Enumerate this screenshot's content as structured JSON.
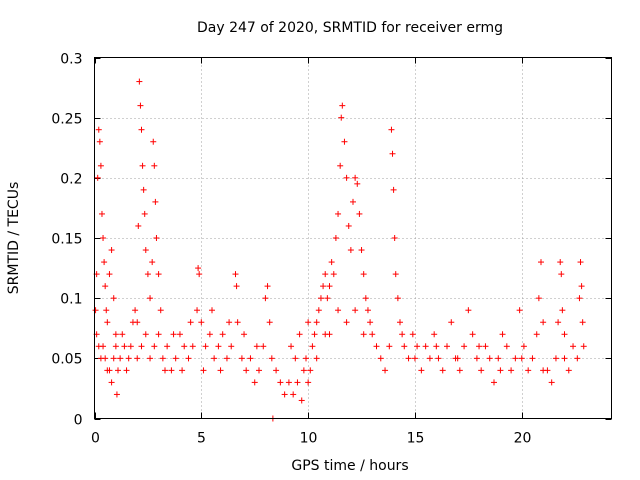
{
  "chart_data": {
    "type": "scatter",
    "title": "Day 247 of 2020, SRMTID for receiver ermg",
    "xlabel": "GPS time / hours",
    "ylabel": "SRMTID / TECUs",
    "xlim": [
      0,
      24.2
    ],
    "ylim": [
      0,
      0.3
    ],
    "xticks": [
      0,
      5,
      10,
      15,
      20
    ],
    "xtick_labels": [
      "0",
      "5",
      "10",
      "15",
      "20"
    ],
    "yticks": [
      0,
      0.05,
      0.1,
      0.15,
      0.2,
      0.25,
      0.3
    ],
    "ytick_labels": [
      "0",
      "0.05",
      "0.1",
      "0.15",
      "0.2",
      "0.25",
      "0.3"
    ],
    "grid": true,
    "marker": "+",
    "color": "#ff0000",
    "series": [
      {
        "name": "SRMTID",
        "points": [
          [
            0.05,
            0.09
          ],
          [
            0.1,
            0.12
          ],
          [
            0.15,
            0.2
          ],
          [
            0.2,
            0.24
          ],
          [
            0.25,
            0.23
          ],
          [
            0.3,
            0.21
          ],
          [
            0.35,
            0.17
          ],
          [
            0.4,
            0.15
          ],
          [
            0.45,
            0.13
          ],
          [
            0.5,
            0.11
          ],
          [
            0.55,
            0.09
          ],
          [
            0.6,
            0.08
          ],
          [
            0.7,
            0.12
          ],
          [
            0.8,
            0.14
          ],
          [
            0.9,
            0.1
          ],
          [
            1.0,
            0.07
          ],
          [
            0.1,
            0.07
          ],
          [
            0.2,
            0.06
          ],
          [
            0.3,
            0.05
          ],
          [
            0.4,
            0.06
          ],
          [
            0.5,
            0.05
          ],
          [
            0.6,
            0.04
          ],
          [
            0.7,
            0.04
          ],
          [
            0.8,
            0.03
          ],
          [
            0.9,
            0.05
          ],
          [
            1.0,
            0.06
          ],
          [
            1.05,
            0.02
          ],
          [
            1.1,
            0.04
          ],
          [
            1.2,
            0.05
          ],
          [
            1.3,
            0.07
          ],
          [
            1.4,
            0.06
          ],
          [
            1.5,
            0.04
          ],
          [
            1.6,
            0.05
          ],
          [
            1.7,
            0.06
          ],
          [
            1.8,
            0.08
          ],
          [
            1.9,
            0.09
          ],
          [
            2.0,
            0.08
          ],
          [
            2.05,
            0.16
          ],
          [
            2.1,
            0.28
          ],
          [
            2.15,
            0.26
          ],
          [
            2.2,
            0.24
          ],
          [
            2.25,
            0.21
          ],
          [
            2.3,
            0.19
          ],
          [
            2.35,
            0.17
          ],
          [
            2.4,
            0.14
          ],
          [
            2.5,
            0.12
          ],
          [
            2.6,
            0.1
          ],
          [
            2.7,
            0.13
          ],
          [
            2.75,
            0.23
          ],
          [
            2.8,
            0.21
          ],
          [
            2.85,
            0.18
          ],
          [
            2.9,
            0.15
          ],
          [
            3.0,
            0.12
          ],
          [
            3.1,
            0.09
          ],
          [
            2.0,
            0.05
          ],
          [
            2.2,
            0.06
          ],
          [
            2.4,
            0.07
          ],
          [
            2.6,
            0.05
          ],
          [
            2.8,
            0.06
          ],
          [
            3.0,
            0.07
          ],
          [
            3.2,
            0.05
          ],
          [
            3.4,
            0.06
          ],
          [
            3.6,
            0.04
          ],
          [
            3.8,
            0.05
          ],
          [
            4.0,
            0.07
          ],
          [
            4.2,
            0.06
          ],
          [
            4.4,
            0.05
          ],
          [
            4.6,
            0.06
          ],
          [
            4.8,
            0.09
          ],
          [
            4.85,
            0.125
          ],
          [
            4.9,
            0.12
          ],
          [
            5.0,
            0.08
          ],
          [
            5.2,
            0.06
          ],
          [
            5.4,
            0.07
          ],
          [
            5.6,
            0.05
          ],
          [
            5.8,
            0.06
          ],
          [
            6.0,
            0.07
          ],
          [
            6.2,
            0.05
          ],
          [
            6.4,
            0.06
          ],
          [
            6.6,
            0.12
          ],
          [
            6.65,
            0.11
          ],
          [
            6.7,
            0.08
          ],
          [
            6.9,
            0.05
          ],
          [
            7.1,
            0.04
          ],
          [
            7.3,
            0.05
          ],
          [
            7.5,
            0.03
          ],
          [
            7.7,
            0.04
          ],
          [
            7.9,
            0.06
          ],
          [
            8.0,
            0.1
          ],
          [
            8.1,
            0.11
          ],
          [
            8.2,
            0.08
          ],
          [
            3.3,
            0.04
          ],
          [
            3.7,
            0.07
          ],
          [
            4.1,
            0.04
          ],
          [
            4.5,
            0.08
          ],
          [
            5.1,
            0.04
          ],
          [
            5.5,
            0.09
          ],
          [
            5.9,
            0.04
          ],
          [
            6.3,
            0.08
          ],
          [
            7.0,
            0.07
          ],
          [
            7.6,
            0.06
          ],
          [
            8.3,
            0.05
          ],
          [
            8.35,
            0.0
          ],
          [
            8.5,
            0.04
          ],
          [
            8.7,
            0.03
          ],
          [
            8.9,
            0.02
          ],
          [
            9.1,
            0.03
          ],
          [
            9.3,
            0.02
          ],
          [
            9.5,
            0.03
          ],
          [
            9.7,
            0.015
          ],
          [
            9.8,
            0.04
          ],
          [
            9.9,
            0.05
          ],
          [
            10.0,
            0.03
          ],
          [
            10.1,
            0.04
          ],
          [
            10.2,
            0.06
          ],
          [
            10.3,
            0.07
          ],
          [
            10.4,
            0.08
          ],
          [
            10.5,
            0.09
          ],
          [
            10.6,
            0.1
          ],
          [
            10.7,
            0.11
          ],
          [
            10.8,
            0.12
          ],
          [
            10.9,
            0.1
          ],
          [
            11.0,
            0.11
          ],
          [
            9.2,
            0.06
          ],
          [
            9.4,
            0.05
          ],
          [
            9.6,
            0.07
          ],
          [
            10.0,
            0.08
          ],
          [
            10.4,
            0.05
          ],
          [
            10.8,
            0.07
          ],
          [
            11.1,
            0.13
          ],
          [
            11.2,
            0.12
          ],
          [
            11.3,
            0.15
          ],
          [
            11.4,
            0.17
          ],
          [
            11.5,
            0.21
          ],
          [
            11.55,
            0.25
          ],
          [
            11.6,
            0.26
          ],
          [
            11.7,
            0.23
          ],
          [
            11.8,
            0.2
          ],
          [
            11.9,
            0.16
          ],
          [
            12.0,
            0.14
          ],
          [
            12.1,
            0.18
          ],
          [
            12.2,
            0.2
          ],
          [
            12.3,
            0.195
          ],
          [
            12.4,
            0.17
          ],
          [
            12.5,
            0.14
          ],
          [
            12.6,
            0.12
          ],
          [
            12.7,
            0.1
          ],
          [
            12.8,
            0.09
          ],
          [
            12.9,
            0.08
          ],
          [
            11.0,
            0.07
          ],
          [
            11.4,
            0.09
          ],
          [
            11.8,
            0.08
          ],
          [
            12.2,
            0.09
          ],
          [
            12.6,
            0.07
          ],
          [
            13.0,
            0.07
          ],
          [
            13.2,
            0.06
          ],
          [
            13.4,
            0.05
          ],
          [
            13.6,
            0.04
          ],
          [
            13.8,
            0.06
          ],
          [
            13.9,
            0.24
          ],
          [
            13.95,
            0.22
          ],
          [
            14.0,
            0.19
          ],
          [
            14.05,
            0.15
          ],
          [
            14.1,
            0.12
          ],
          [
            14.2,
            0.1
          ],
          [
            14.3,
            0.08
          ],
          [
            14.4,
            0.07
          ],
          [
            14.5,
            0.06
          ],
          [
            14.7,
            0.05
          ],
          [
            14.9,
            0.07
          ],
          [
            15.1,
            0.06
          ],
          [
            15.3,
            0.04
          ],
          [
            15.5,
            0.06
          ],
          [
            15.7,
            0.05
          ],
          [
            15.9,
            0.07
          ],
          [
            16.1,
            0.05
          ],
          [
            16.3,
            0.04
          ],
          [
            16.5,
            0.06
          ],
          [
            16.7,
            0.08
          ],
          [
            16.9,
            0.05
          ],
          [
            17.1,
            0.04
          ],
          [
            17.3,
            0.06
          ],
          [
            17.5,
            0.09
          ],
          [
            17.7,
            0.07
          ],
          [
            17.9,
            0.05
          ],
          [
            18.1,
            0.04
          ],
          [
            18.3,
            0.06
          ],
          [
            18.5,
            0.05
          ],
          [
            18.7,
            0.03
          ],
          [
            18.9,
            0.05
          ],
          [
            19.1,
            0.07
          ],
          [
            19.3,
            0.06
          ],
          [
            19.5,
            0.04
          ],
          [
            19.7,
            0.05
          ],
          [
            19.9,
            0.09
          ],
          [
            20.1,
            0.06
          ],
          [
            20.3,
            0.04
          ],
          [
            20.5,
            0.05
          ],
          [
            20.7,
            0.07
          ],
          [
            20.8,
            0.1
          ],
          [
            20.9,
            0.13
          ],
          [
            21.0,
            0.08
          ],
          [
            21.2,
            0.04
          ],
          [
            21.4,
            0.03
          ],
          [
            21.6,
            0.05
          ],
          [
            21.7,
            0.08
          ],
          [
            21.8,
            0.13
          ],
          [
            21.85,
            0.12
          ],
          [
            21.9,
            0.09
          ],
          [
            22.0,
            0.05
          ],
          [
            22.2,
            0.04
          ],
          [
            22.4,
            0.06
          ],
          [
            22.6,
            0.05
          ],
          [
            22.7,
            0.1
          ],
          [
            22.75,
            0.13
          ],
          [
            22.8,
            0.11
          ],
          [
            22.85,
            0.08
          ],
          [
            22.9,
            0.06
          ],
          [
            15.0,
            0.05
          ],
          [
            16.0,
            0.06
          ],
          [
            17.0,
            0.05
          ],
          [
            18.0,
            0.06
          ],
          [
            19.0,
            0.04
          ],
          [
            20.0,
            0.05
          ],
          [
            21.0,
            0.04
          ],
          [
            22.0,
            0.07
          ]
        ]
      }
    ]
  }
}
